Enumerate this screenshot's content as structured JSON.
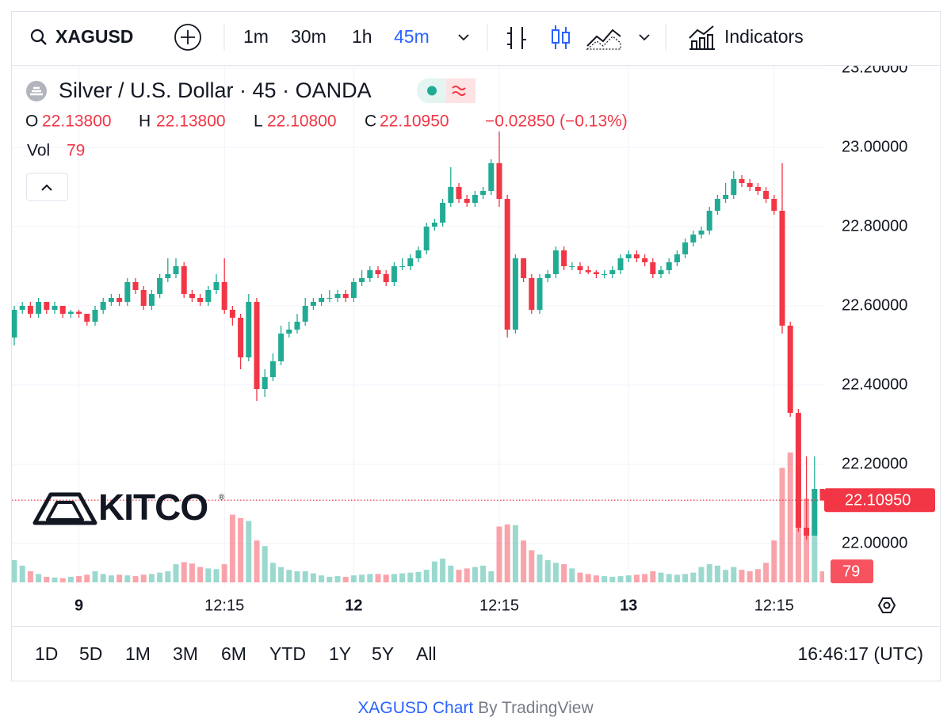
{
  "toolbar": {
    "symbol": "XAGUSD",
    "intervals": [
      "1m",
      "30m",
      "1h",
      "45m"
    ],
    "active_interval": "45m",
    "indicators": "Indicators"
  },
  "legend": {
    "title": "Silver / U.S. Dollar · 45 · OANDA",
    "ohlc": [
      {
        "key": "O",
        "value": "22.13800"
      },
      {
        "key": "H",
        "value": "22.13800"
      },
      {
        "key": "L",
        "value": "22.10800"
      },
      {
        "key": "C",
        "value": "22.10950"
      }
    ],
    "change": "−0.02850 (−0.13%)",
    "volume_key": "Vol"
  },
  "logo": {
    "text": "KITCO",
    "mark": "®"
  },
  "range_buttons": [
    "1D",
    "5D",
    "1M",
    "3M",
    "6M",
    "YTD",
    "1Y",
    "5Y",
    "All"
  ],
  "clock": "16:46:17 (UTC)",
  "footer": {
    "link": "XAGUSD Chart",
    "by": "By TradingView"
  },
  "chart_data": {
    "type": "candlestick",
    "up_color": "#22ab94",
    "down_color": "#f23645",
    "grid": true,
    "ylim": [
      21.902,
      23.206
    ],
    "yticks": [
      {
        "value": 22.0,
        "label": "22.00000"
      },
      {
        "value": 22.2,
        "label": "22.20000"
      },
      {
        "value": 22.4,
        "label": "22.40000"
      },
      {
        "value": 22.6,
        "label": "22.60000"
      },
      {
        "value": 22.8,
        "label": "22.80000"
      },
      {
        "value": 23.0,
        "label": "23.00000"
      },
      {
        "value": 23.2,
        "label": "23.20000"
      }
    ],
    "last_price": {
      "value": 22.1095,
      "label": "22.10950"
    },
    "volume_lim": [
      0,
      3700
    ],
    "categories": [
      null,
      null,
      null,
      null,
      null,
      null,
      null,
      null,
      "9",
      null,
      null,
      null,
      null,
      null,
      null,
      null,
      null,
      null,
      null,
      null,
      null,
      null,
      null,
      null,
      null,
      null,
      "12:15",
      null,
      null,
      null,
      null,
      null,
      null,
      null,
      null,
      null,
      null,
      null,
      null,
      null,
      null,
      null,
      "12",
      null,
      null,
      null,
      null,
      null,
      null,
      null,
      null,
      null,
      null,
      null,
      null,
      null,
      null,
      null,
      null,
      null,
      "12:15",
      null,
      null,
      null,
      null,
      null,
      null,
      null,
      null,
      null,
      null,
      null,
      null,
      null,
      null,
      null,
      "13",
      null,
      null,
      null,
      null,
      null,
      null,
      null,
      null,
      null,
      null,
      null,
      null,
      null,
      null,
      null,
      null,
      null,
      "12:15",
      null,
      null,
      null,
      null,
      null,
      null
    ],
    "series": [
      {
        "open": [
          22.52,
          22.59,
          22.6,
          22.58,
          22.61,
          22.59,
          22.6,
          22.58,
          22.585,
          22.58,
          22.56,
          22.59,
          22.61,
          22.62,
          22.61,
          22.66,
          22.64,
          22.6,
          22.63,
          22.67,
          22.68,
          22.7,
          22.63,
          22.62,
          22.61,
          22.64,
          22.66,
          22.59,
          22.57,
          22.47,
          22.61,
          22.39,
          22.42,
          22.46,
          22.53,
          22.54,
          22.56,
          22.6,
          22.61,
          22.62,
          22.62,
          22.63,
          22.62,
          22.66,
          22.67,
          22.69,
          22.68,
          22.66,
          22.7,
          22.7,
          22.72,
          22.74,
          22.8,
          22.81,
          22.86,
          22.9,
          22.87,
          22.86,
          22.88,
          22.89,
          22.96,
          22.87,
          22.54,
          22.72,
          22.67,
          22.59,
          22.67,
          22.68,
          22.74,
          22.7,
          22.7,
          22.69,
          22.685,
          22.68,
          22.68,
          22.69,
          22.72,
          22.73,
          22.72,
          22.71,
          22.68,
          22.69,
          22.71,
          22.73,
          22.76,
          22.78,
          22.79,
          22.84,
          22.87,
          22.88,
          22.92,
          22.91,
          22.9,
          22.89,
          22.87,
          22.84,
          22.55,
          22.33,
          22.04,
          22.02,
          22.138
        ],
        "high": [
          22.6,
          22.61,
          22.61,
          22.62,
          22.61,
          22.61,
          22.6,
          22.59,
          22.59,
          22.58,
          22.6,
          22.62,
          22.63,
          22.63,
          22.67,
          22.67,
          22.65,
          22.64,
          22.68,
          22.72,
          22.72,
          22.71,
          22.64,
          22.63,
          22.65,
          22.68,
          22.72,
          22.6,
          22.58,
          22.63,
          22.62,
          22.44,
          22.48,
          22.55,
          22.56,
          22.58,
          22.62,
          22.62,
          22.63,
          22.64,
          22.64,
          22.64,
          22.67,
          22.69,
          22.7,
          22.7,
          22.69,
          22.71,
          22.72,
          22.73,
          22.75,
          22.81,
          22.82,
          22.87,
          22.95,
          22.91,
          22.88,
          22.89,
          22.9,
          22.97,
          23.04,
          22.88,
          22.73,
          22.72,
          22.68,
          22.68,
          22.69,
          22.75,
          22.75,
          22.71,
          22.71,
          22.7,
          22.69,
          22.69,
          22.7,
          22.73,
          22.74,
          22.74,
          22.73,
          22.72,
          22.7,
          22.72,
          22.74,
          22.77,
          22.79,
          22.8,
          22.85,
          22.88,
          22.91,
          22.94,
          22.93,
          22.92,
          22.91,
          22.9,
          22.88,
          22.96,
          22.56,
          22.34,
          22.22,
          22.22,
          22.138
        ],
        "low": [
          22.5,
          22.58,
          22.57,
          22.57,
          22.58,
          22.58,
          22.57,
          22.57,
          22.57,
          22.55,
          22.55,
          22.58,
          22.6,
          22.6,
          22.6,
          22.63,
          22.59,
          22.59,
          22.62,
          22.66,
          22.67,
          22.62,
          22.61,
          22.6,
          22.6,
          22.63,
          22.58,
          22.55,
          22.44,
          22.46,
          22.36,
          22.37,
          22.41,
          22.45,
          22.52,
          22.53,
          22.55,
          22.59,
          22.6,
          22.61,
          22.61,
          22.61,
          22.61,
          22.65,
          22.66,
          22.67,
          22.65,
          22.65,
          22.69,
          22.69,
          22.71,
          22.73,
          22.79,
          22.8,
          22.85,
          22.86,
          22.85,
          22.85,
          22.87,
          22.88,
          22.85,
          22.52,
          22.53,
          22.66,
          22.58,
          22.58,
          22.66,
          22.67,
          22.69,
          22.69,
          22.68,
          22.68,
          22.67,
          22.67,
          22.67,
          22.68,
          22.71,
          22.71,
          22.7,
          22.67,
          22.67,
          22.68,
          22.7,
          22.72,
          22.75,
          22.77,
          22.78,
          22.83,
          22.86,
          22.87,
          22.9,
          22.89,
          22.88,
          22.86,
          22.83,
          22.53,
          22.32,
          22.03,
          22.01,
          22.02,
          22.108
        ],
        "close": [
          22.59,
          22.6,
          22.58,
          22.61,
          22.59,
          22.6,
          22.58,
          22.585,
          22.58,
          22.56,
          22.59,
          22.61,
          22.62,
          22.61,
          22.66,
          22.64,
          22.6,
          22.63,
          22.67,
          22.68,
          22.7,
          22.63,
          22.62,
          22.61,
          22.64,
          22.66,
          22.59,
          22.57,
          22.47,
          22.61,
          22.39,
          22.42,
          22.46,
          22.53,
          22.54,
          22.56,
          22.6,
          22.61,
          22.62,
          22.62,
          22.63,
          22.62,
          22.66,
          22.67,
          22.69,
          22.68,
          22.66,
          22.7,
          22.7,
          22.72,
          22.74,
          22.8,
          22.81,
          22.86,
          22.9,
          22.87,
          22.86,
          22.88,
          22.89,
          22.96,
          22.87,
          22.54,
          22.72,
          22.67,
          22.59,
          22.67,
          22.68,
          22.74,
          22.7,
          22.7,
          22.69,
          22.685,
          22.68,
          22.68,
          22.69,
          22.72,
          22.73,
          22.72,
          22.71,
          22.68,
          22.69,
          22.71,
          22.73,
          22.76,
          22.78,
          22.79,
          22.84,
          22.87,
          22.88,
          22.92,
          22.91,
          22.9,
          22.89,
          22.87,
          22.84,
          22.55,
          22.33,
          22.04,
          22.02,
          22.138,
          22.1095
        ]
      }
    ],
    "volume": [
      160,
      120,
      80,
      60,
      40,
      35,
      30,
      40,
      45,
      55,
      80,
      60,
      50,
      55,
      50,
      45,
      55,
      60,
      70,
      80,
      130,
      145,
      135,
      110,
      100,
      95,
      130,
      485,
      460,
      440,
      300,
      260,
      140,
      110,
      90,
      80,
      80,
      65,
      50,
      40,
      45,
      40,
      50,
      55,
      60,
      60,
      55,
      60,
      65,
      70,
      75,
      90,
      150,
      170,
      120,
      90,
      100,
      110,
      120,
      80,
      400,
      415,
      410,
      300,
      230,
      200,
      160,
      140,
      130,
      100,
      70,
      60,
      50,
      45,
      40,
      45,
      50,
      55,
      60,
      80,
      70,
      60,
      55,
      60,
      70,
      110,
      130,
      120,
      90,
      110,
      90,
      80,
      95,
      140,
      300,
      820,
      930,
      815,
      600,
      400,
      79
    ]
  }
}
